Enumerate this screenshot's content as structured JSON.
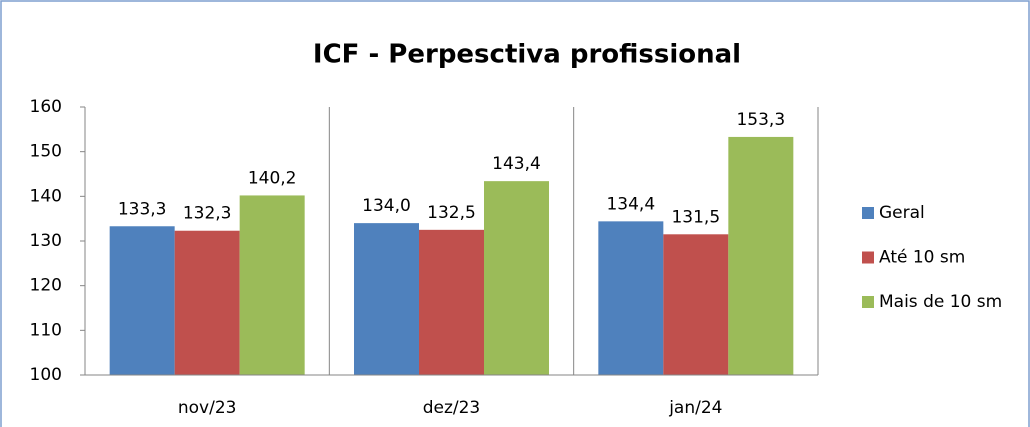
{
  "chart_data": {
    "type": "bar",
    "title": "ICF - Perpesctiva profissional",
    "categories": [
      "nov/23",
      "dez/23",
      "jan/24"
    ],
    "series": [
      {
        "name": "Geral",
        "color": "#4f81bd",
        "values": [
          133.3,
          134.0,
          134.4
        ],
        "value_labels": [
          "133,3",
          "134,0",
          "134,4"
        ]
      },
      {
        "name": "Até 10 sm",
        "color": "#c0504d",
        "values": [
          132.3,
          132.5,
          131.5
        ],
        "value_labels": [
          "132,3",
          "132,5",
          "131,5"
        ]
      },
      {
        "name": "Mais de 10 sm",
        "color": "#9bbb59",
        "values": [
          140.2,
          143.4,
          153.3
        ],
        "value_labels": [
          "140,2",
          "143,4",
          "153,3"
        ]
      }
    ],
    "ylim": [
      100,
      160
    ],
    "yticks": [
      100,
      110,
      120,
      130,
      140,
      150,
      160
    ],
    "grid": false,
    "legend": "right"
  }
}
